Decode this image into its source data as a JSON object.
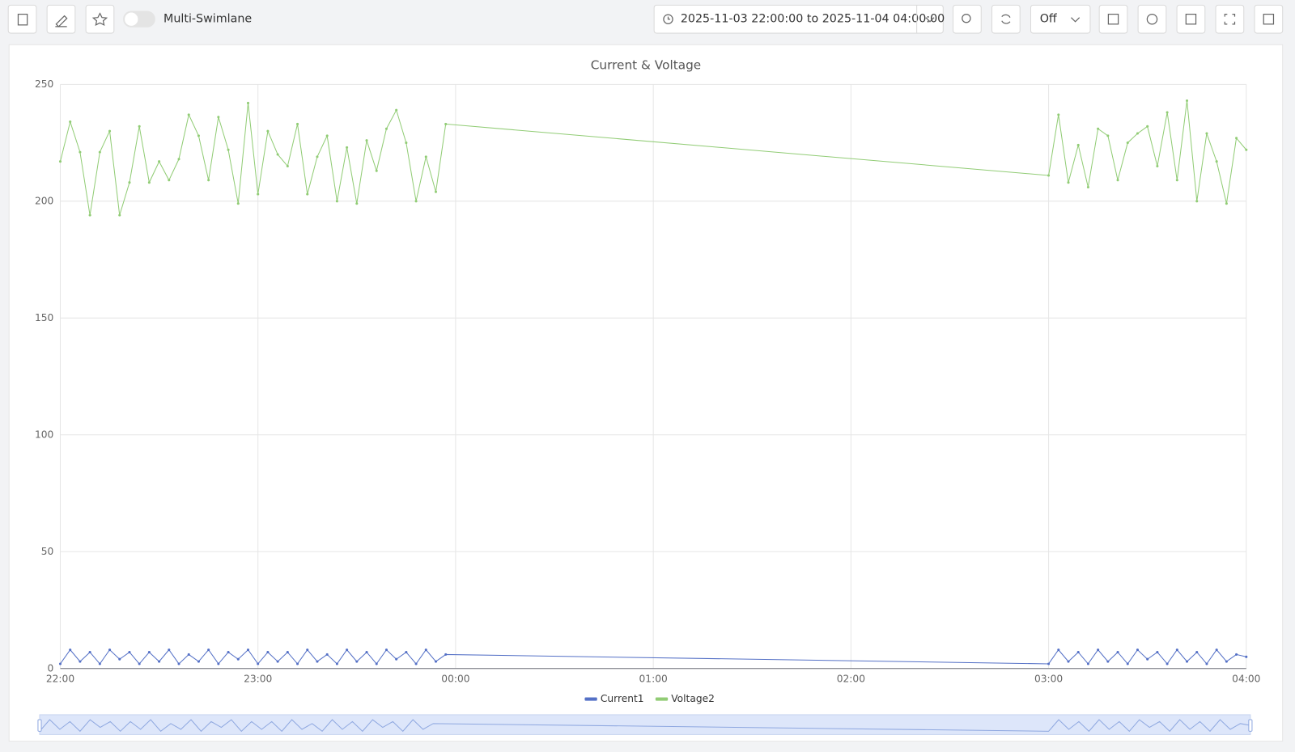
{
  "toolbar": {
    "toggle_label": "Multi-Swimlane",
    "time_range": "2025-11-03 22:00:00 to 2025-11-04 04:00:00",
    "refresh": "Off"
  },
  "chart_data": {
    "type": "line",
    "title": "Current & Voltage",
    "x": [
      "22:00",
      "22:03",
      "22:06",
      "22:09",
      "22:12",
      "22:15",
      "22:18",
      "22:21",
      "22:24",
      "22:27",
      "22:30",
      "22:33",
      "22:36",
      "22:39",
      "22:42",
      "22:45",
      "22:48",
      "22:51",
      "22:54",
      "22:57",
      "23:00",
      "23:03",
      "23:06",
      "23:09",
      "23:12",
      "23:15",
      "23:18",
      "23:21",
      "23:24",
      "23:27",
      "23:30",
      "23:33",
      "23:36",
      "23:39",
      "23:42",
      "23:45",
      "23:48",
      "23:51",
      "23:54",
      "23:57",
      "03:00",
      "03:03",
      "03:06",
      "03:09",
      "03:12",
      "03:15",
      "03:18",
      "03:21",
      "03:24",
      "03:27",
      "03:30",
      "03:33",
      "03:36",
      "03:39",
      "03:42",
      "03:45",
      "03:48",
      "03:51",
      "03:54",
      "03:57",
      "04:00"
    ],
    "series": [
      {
        "name": "Current1",
        "color": "#5470c6",
        "values": [
          2,
          8,
          3,
          7,
          2,
          8,
          4,
          7,
          2,
          7,
          3,
          8,
          2,
          6,
          3,
          8,
          2,
          7,
          4,
          8,
          2,
          7,
          3,
          7,
          2,
          8,
          3,
          6,
          2,
          8,
          3,
          7,
          2,
          8,
          4,
          7,
          2,
          8,
          3,
          6,
          2,
          8,
          3,
          7,
          2,
          8,
          3,
          7,
          2,
          8,
          4,
          7,
          2,
          8,
          3,
          7,
          2,
          8,
          3,
          6,
          5
        ]
      },
      {
        "name": "Voltage2",
        "color": "#91cc75",
        "values": [
          217,
          234,
          221,
          194,
          221,
          230,
          194,
          208,
          232,
          208,
          217,
          209,
          218,
          237,
          228,
          209,
          236,
          222,
          199,
          242,
          203,
          230,
          220,
          215,
          233,
          203,
          219,
          228,
          200,
          223,
          199,
          226,
          213,
          231,
          239,
          225,
          200,
          219,
          204,
          233,
          211,
          237,
          208,
          224,
          206,
          231,
          228,
          209,
          225,
          229,
          232,
          215,
          238,
          209,
          243,
          200,
          229,
          217,
          199,
          227,
          222
        ]
      }
    ],
    "xlim": [
      "22:00",
      "04:00"
    ],
    "xticks": [
      "22:00",
      "23:00",
      "00:00",
      "01:00",
      "02:00",
      "03:00",
      "04:00"
    ],
    "ylim": [
      0,
      250
    ],
    "yticks": [
      0,
      50,
      100,
      150,
      200,
      250
    ],
    "grid": true,
    "legend": "bottom"
  }
}
